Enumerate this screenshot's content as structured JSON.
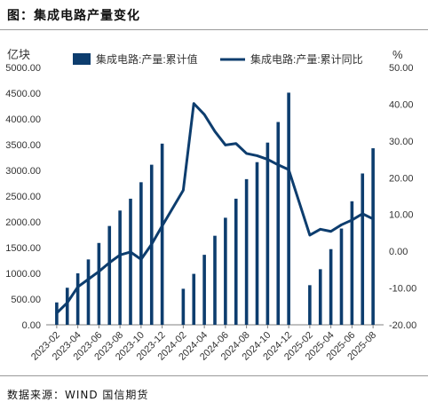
{
  "page": {
    "title": "图：集成电路产量变化",
    "source": "数据来源：WIND 国信期货"
  },
  "chart_data": {
    "type": "bar+line",
    "left_axis": {
      "unit": "亿块",
      "ylim": [
        0,
        5000
      ],
      "ticks": [
        "0.00",
        "500.00",
        "1000.00",
        "1500.00",
        "2000.00",
        "2500.00",
        "3000.00",
        "3500.00",
        "4000.00",
        "4500.00",
        "5000.00"
      ]
    },
    "right_axis": {
      "unit": "%",
      "ylim": [
        -20,
        50
      ],
      "ticks": [
        "-20.00",
        "-10.00",
        "0.00",
        "10.00",
        "20.00",
        "30.00",
        "40.00",
        "50.00"
      ]
    },
    "x_tick_labels": [
      "2023-02",
      "2023-04",
      "2023-06",
      "2023-08",
      "2023-10",
      "2023-12",
      "2024-02",
      "2024-04",
      "2024-06",
      "2024-08",
      "2024-10",
      "2024-12",
      "2025-02",
      "2025-04",
      "2025-06",
      "2025-08"
    ],
    "months": [
      "2023-02",
      "2023-03",
      "2023-04",
      "2023-05",
      "2023-06",
      "2023-07",
      "2023-08",
      "2023-09",
      "2023-10",
      "2023-11",
      "2023-12",
      "2024-02",
      "2024-03",
      "2024-04",
      "2024-05",
      "2024-06",
      "2024-07",
      "2024-08",
      "2024-09",
      "2024-10",
      "2024-11",
      "2024-12",
      "2025-02",
      "2025-03",
      "2025-04",
      "2025-05",
      "2025-06",
      "2025-07",
      "2025-08"
    ],
    "series": [
      {
        "name": "集成电路:产量:累计值",
        "kind": "bar",
        "axis": "left",
        "color": "#0d3d6e",
        "values": [
          435,
          720,
          1000,
          1270,
          1590,
          1920,
          2220,
          2450,
          2770,
          3110,
          3520,
          700,
          990,
          1360,
          1730,
          2080,
          2450,
          2830,
          3160,
          3540,
          3940,
          4510,
          770,
          1080,
          1470,
          1870,
          2400,
          2940,
          3430
        ]
      },
      {
        "name": "集成电路:产量:累计同比",
        "kind": "line",
        "axis": "right",
        "color": "#0d3d6e",
        "values": [
          -16.8,
          -14,
          -9.7,
          -7.6,
          -5.5,
          -3.1,
          -1,
          -0.2,
          -2.2,
          1.9,
          6.9,
          16.6,
          40.2,
          37.2,
          32.6,
          28.9,
          29.3,
          26.6,
          26,
          25,
          23.5,
          22.2,
          4.4,
          6,
          5.4,
          7.2,
          8.5,
          10.2,
          8.8
        ]
      }
    ]
  }
}
